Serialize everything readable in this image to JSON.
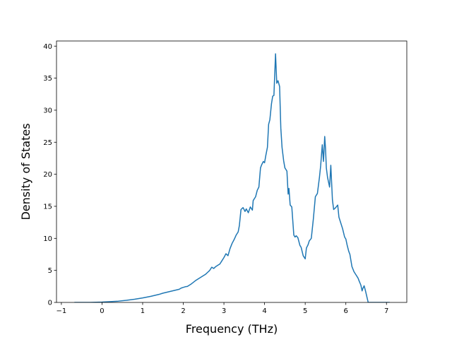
{
  "chart_data": {
    "type": "line",
    "xlabel": "Frequency (THz)",
    "ylabel": "Density of States",
    "xlim": [
      -1.12,
      7.5
    ],
    "ylim": [
      0,
      40.8
    ],
    "x_ticks": [
      -1,
      0,
      1,
      2,
      3,
      4,
      5,
      6,
      7
    ],
    "y_ticks": [
      0,
      5,
      10,
      15,
      20,
      25,
      30,
      35,
      40
    ],
    "x_tick_labels": [
      "−1",
      "0",
      "1",
      "2",
      "3",
      "4",
      "5",
      "6",
      "7"
    ],
    "y_tick_labels": [
      "0",
      "5",
      "10",
      "15",
      "20",
      "25",
      "30",
      "35",
      "40"
    ],
    "grid": false,
    "series": [
      {
        "color": "#1f77b4",
        "x": [
          -0.68,
          -0.3,
          0.0,
          0.2,
          0.4,
          0.6,
          0.8,
          1.0,
          1.2,
          1.4,
          1.5,
          1.6,
          1.7,
          1.8,
          1.9,
          1.95,
          2.0,
          2.05,
          2.1,
          2.2,
          2.3,
          2.4,
          2.5,
          2.55,
          2.6,
          2.65,
          2.7,
          2.75,
          2.8,
          2.85,
          2.9,
          2.95,
          3.0,
          3.05,
          3.1,
          3.15,
          3.2,
          3.25,
          3.3,
          3.35,
          3.38,
          3.42,
          3.47,
          3.52,
          3.55,
          3.6,
          3.65,
          3.7,
          3.72,
          3.78,
          3.82,
          3.86,
          3.9,
          3.93,
          3.97,
          4.0,
          4.03,
          4.07,
          4.1,
          4.13,
          4.17,
          4.2,
          4.23,
          4.27,
          4.3,
          4.33,
          4.37,
          4.4,
          4.43,
          4.47,
          4.5,
          4.55,
          4.58,
          4.6,
          4.63,
          4.67,
          4.72,
          4.75,
          4.78,
          4.82,
          4.87,
          4.9,
          4.95,
          5.0,
          5.03,
          5.07,
          5.1,
          5.15,
          5.2,
          5.25,
          5.3,
          5.35,
          5.38,
          5.42,
          5.45,
          5.48,
          5.5,
          5.52,
          5.55,
          5.6,
          5.63,
          5.67,
          5.7,
          5.75,
          5.8,
          5.83,
          5.87,
          5.92,
          5.97,
          6.0,
          6.03,
          6.07,
          6.1,
          6.15,
          6.2,
          6.25,
          6.3,
          6.33,
          6.37,
          6.4,
          6.42,
          6.45,
          6.48,
          6.55,
          6.7,
          7.08
        ],
        "y": [
          0.0,
          0.0,
          0.05,
          0.12,
          0.2,
          0.33,
          0.5,
          0.7,
          0.95,
          1.25,
          1.45,
          1.6,
          1.75,
          1.9,
          2.05,
          2.25,
          2.35,
          2.45,
          2.5,
          2.9,
          3.4,
          3.8,
          4.2,
          4.4,
          4.7,
          5.0,
          5.5,
          5.3,
          5.6,
          5.8,
          6.0,
          6.5,
          7.0,
          7.6,
          7.3,
          8.4,
          9.2,
          9.8,
          10.5,
          11.0,
          12.0,
          14.5,
          14.8,
          14.2,
          14.6,
          14.0,
          14.9,
          14.4,
          15.9,
          16.5,
          17.5,
          18.0,
          21.0,
          21.5,
          22.0,
          21.8,
          22.9,
          24.2,
          27.8,
          28.5,
          31.0,
          32.2,
          32.3,
          38.8,
          34.2,
          34.6,
          33.7,
          27.2,
          24.2,
          22.1,
          21.0,
          20.5,
          16.9,
          17.8,
          15.2,
          14.9,
          10.5,
          10.2,
          10.4,
          10.1,
          8.9,
          8.6,
          7.3,
          6.8,
          8.5,
          9.0,
          9.6,
          10.0,
          13.0,
          16.5,
          17.0,
          19.5,
          21.3,
          24.6,
          22.0,
          25.9,
          24.0,
          21.0,
          19.5,
          18.0,
          21.4,
          16.0,
          14.5,
          14.8,
          15.2,
          13.3,
          12.5,
          11.5,
          10.2,
          9.9,
          9.0,
          8.0,
          7.5,
          5.6,
          4.8,
          4.3,
          3.8,
          3.3,
          2.7,
          1.8,
          2.2,
          2.6,
          1.9,
          0.0,
          0.0,
          0.0
        ]
      }
    ]
  }
}
